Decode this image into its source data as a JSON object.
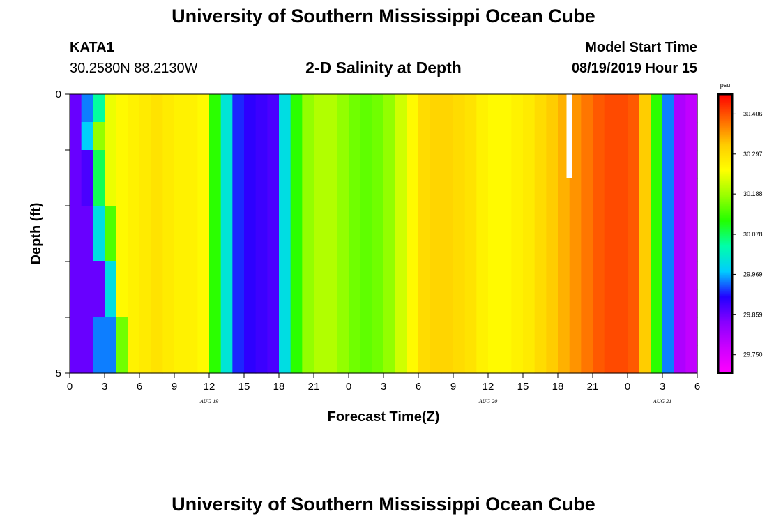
{
  "page": {
    "title_top": "University of Southern Mississippi Ocean Cube",
    "title_bottom": "University of Southern Mississippi Ocean Cube"
  },
  "station": {
    "id": "KATA1",
    "coords": "30.2580N 88.2130W"
  },
  "model": {
    "label": "Model Start Time",
    "time": "08/19/2019 Hour 15"
  },
  "chart_data": {
    "type": "heatmap",
    "title": "2-D Salinity at Depth",
    "xlabel": "Forecast Time(Z)",
    "ylabel": "Depth (ft)",
    "units": "psu",
    "x_range_hours": [
      0,
      54
    ],
    "y_range_ft": [
      0,
      5
    ],
    "x_tick_labels": [
      "0",
      "3",
      "6",
      "9",
      "12",
      "15",
      "18",
      "21",
      "0",
      "3",
      "6",
      "9",
      "12",
      "15",
      "18",
      "21",
      "0",
      "3",
      "6"
    ],
    "y_tick_labels": [
      "0",
      "5"
    ],
    "date_labels": [
      {
        "text": "AUG 19",
        "hour": 12
      },
      {
        "text": "AUG 20",
        "hour": 36
      },
      {
        "text": "AUG 21",
        "hour": 51
      }
    ],
    "colorbar": {
      "ticks": [
        "30.406",
        "30.297",
        "30.188",
        "30.078",
        "29.969",
        "29.859",
        "29.750"
      ],
      "range": [
        29.7,
        30.46
      ],
      "colors": [
        "#ff00ff",
        "#cc00ff",
        "#8800ff",
        "#2200ff",
        "#00ccff",
        "#00ffaa",
        "#22ff00",
        "#99ff00",
        "#ffff00",
        "#ffcc00",
        "#ff6600",
        "#ff0000"
      ]
    },
    "hours": [
      0,
      1,
      2,
      3,
      4,
      5,
      6,
      7,
      8,
      9,
      10,
      11,
      12,
      13,
      14,
      15,
      16,
      17,
      18,
      19,
      20,
      21,
      22,
      23,
      24,
      25,
      26,
      27,
      28,
      29,
      30,
      31,
      32,
      33,
      34,
      35,
      36,
      37,
      38,
      39,
      40,
      41,
      42,
      43,
      44,
      45,
      46,
      47,
      48,
      49,
      50,
      51,
      52,
      53
    ],
    "columns_psu": [
      29.86,
      29.86,
      29.95,
      30.24,
      30.26,
      30.27,
      30.28,
      30.29,
      30.28,
      30.27,
      30.27,
      30.26,
      30.12,
      30.01,
      29.92,
      29.9,
      29.89,
      29.88,
      30.0,
      30.12,
      30.18,
      30.2,
      30.2,
      30.18,
      30.16,
      30.15,
      30.16,
      30.18,
      30.22,
      30.26,
      30.3,
      30.31,
      30.31,
      30.3,
      30.29,
      30.27,
      30.26,
      30.26,
      30.27,
      30.28,
      30.3,
      30.32,
      30.34,
      30.36,
      30.38,
      30.4,
      30.41,
      30.41,
      30.4,
      30.32,
      30.12,
      29.95,
      29.8,
      29.78
    ],
    "depth_rows_ft": [
      0.25,
      0.75,
      1.25,
      1.75,
      2.25,
      2.75,
      3.25,
      3.75,
      4.25,
      4.75
    ],
    "channel_anomalies": [
      {
        "row": 0,
        "hours": [
          1,
          2
        ],
        "psu": [
          29.95,
          30.05
        ]
      },
      {
        "row": 1,
        "hours": [
          1,
          2
        ],
        "psu": [
          29.98,
          30.18
        ]
      },
      {
        "row": 2,
        "hours": [
          1,
          2
        ],
        "psu": [
          29.88,
          30.08
        ]
      },
      {
        "row": 3,
        "hours": [
          1,
          2
        ],
        "psu": [
          29.88,
          30.08
        ]
      },
      {
        "row": 4,
        "hours": [
          2,
          3
        ],
        "psu": [
          30.0,
          30.14
        ]
      },
      {
        "row": 5,
        "hours": [
          2,
          3
        ],
        "psu": [
          30.0,
          30.14
        ]
      },
      {
        "row": 6,
        "hours": [
          2,
          3
        ],
        "psu": [
          29.86,
          30.0
        ]
      },
      {
        "row": 7,
        "hours": [
          2,
          3
        ],
        "psu": [
          29.86,
          30.0
        ]
      },
      {
        "row": 8,
        "hours": [
          3,
          4
        ],
        "psu": [
          29.95,
          30.16
        ]
      },
      {
        "row": 9,
        "hours": [
          3,
          4
        ],
        "psu": [
          29.95,
          30.16
        ]
      }
    ],
    "missing_data": {
      "hour_start": 42.75,
      "hour_end": 43.25,
      "depth_start_ft": 0,
      "depth_end_ft": 1.5,
      "color": "#ffffff"
    }
  }
}
